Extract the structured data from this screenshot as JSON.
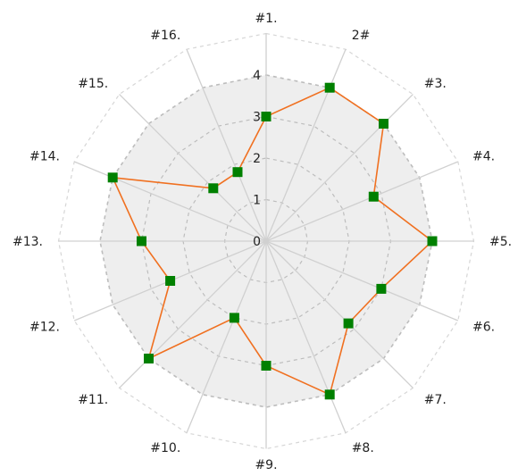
{
  "chart_data": {
    "type": "radar",
    "title": "",
    "categories": [
      "#1.",
      "2#",
      "#3.",
      "#4.",
      "#5.",
      "#6.",
      "#7.",
      "#8.",
      "#9.",
      "#10.",
      "#11.",
      "#12.",
      "#13.",
      "#14.",
      "#15.",
      "#16."
    ],
    "series": [
      {
        "values": [
          3,
          4,
          4,
          2.8,
          4,
          3,
          2.8,
          4,
          3,
          2,
          4,
          2.5,
          3,
          4,
          1.8,
          1.8
        ],
        "line_color": "#f07020",
        "marker_color": "#008000"
      }
    ],
    "radial_ticks": [
      "0",
      "1",
      "2",
      "3",
      "4"
    ],
    "radial_range": [
      0,
      5
    ],
    "shaded_range": [
      0,
      4
    ],
    "grid": true,
    "colors": {
      "shaded_area": "#eeeeee",
      "spokes": "#d0d0d0",
      "inner_grid": "#bdbdbd",
      "outer_grid": "#d6d6d6"
    }
  }
}
